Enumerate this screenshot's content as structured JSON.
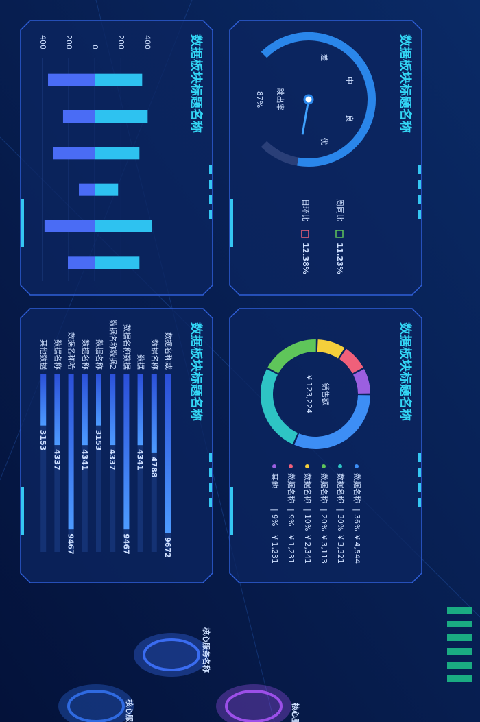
{
  "chart_data": [
    {
      "type": "gauge",
      "title": "数据板块标题名称",
      "value": 87,
      "value_label": "87%",
      "label": "跳出率",
      "ylim": [
        0,
        100
      ],
      "scale_labels": [
        "差",
        "中",
        "良",
        "优"
      ],
      "stats": [
        {
          "name": "周同比",
          "text": "11.23%"
        },
        {
          "name": "日环比",
          "text": "12.38%"
        }
      ]
    },
    {
      "type": "donut",
      "title": "数据板块标题名称",
      "center_label": "销售额",
      "total_label": "¥ 123,224",
      "categories": [
        "数据名称",
        "数据名称",
        "数据名称",
        "数据名称",
        "数据名称",
        "其他"
      ],
      "values": [
        36,
        30,
        20,
        10,
        9,
        9
      ],
      "value_labels": [
        "36%",
        "30%",
        "20%",
        "10%",
        "9%",
        "9%"
      ],
      "amounts": [
        "¥ 4,544",
        "¥ 3,321",
        "¥ 3,113",
        "¥ 2,341",
        "¥ 1,231",
        "¥ 1,231"
      ],
      "colors": [
        "#3d8ef5",
        "#2ec4c4",
        "#5fc55a",
        "#f5cf3b",
        "#f0607a",
        "#9b5fe0"
      ]
    },
    {
      "type": "bar",
      "title": "数据板块标题名称",
      "categories": [
        null,
        null,
        null,
        null,
        null,
        null
      ],
      "series": [
        {
          "color": "#2ec2f0",
          "values": [
            363,
            405,
            342,
            179,
            440,
            342
          ]
        },
        {
          "color": "#4a6cf5",
          "values": [
            -357,
            -242,
            -316,
            -121,
            -384,
            -205
          ]
        }
      ],
      "ylim": [
        -420,
        440
      ],
      "yticks": [
        {
          "value": -400,
          "label": "400"
        },
        {
          "value": -200,
          "label": "200"
        },
        0,
        200,
        400
      ]
    },
    {
      "type": "barh",
      "title": "数据板块标题名称",
      "color": "#3f7cf0",
      "categories": [
        "数据名称或",
        "数据名称",
        "数据",
        "数据名称数据",
        "数据名称数据2",
        "数据名称",
        "数据名称",
        "数据名称哈",
        "数据名称",
        "其他数据"
      ],
      "values": [
        9672,
        4788,
        4341,
        9467,
        4337,
        3153,
        4341,
        9467,
        4337,
        3153
      ]
    }
  ],
  "services": [
    {
      "label": "核心服务名称"
    },
    {
      "label": "核心服务名称"
    },
    {
      "label": "核心服务名称"
    }
  ]
}
